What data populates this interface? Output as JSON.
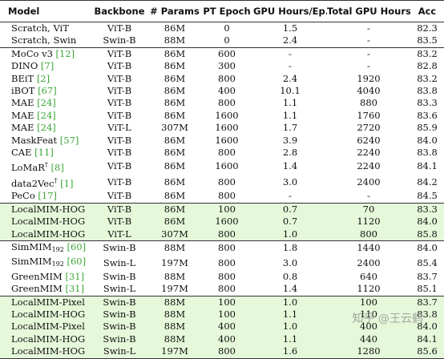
{
  "columns": [
    "Model",
    "Backbone",
    "# Params",
    "PT Epoch",
    "GPU Hours/Ep.",
    "Total GPU Hours",
    "Acc"
  ],
  "groups": [
    {
      "highlight": false,
      "rows": [
        {
          "model": "Scratch, ViT",
          "cite": "",
          "sub": "",
          "sup": "",
          "backbone": "ViT-B",
          "params": "86M",
          "epoch": "0",
          "gpu_ep": "1.5",
          "total": "-",
          "acc": "82.3"
        },
        {
          "model": "Scratch, Swin",
          "cite": "",
          "sub": "",
          "sup": "",
          "backbone": "Swin-B",
          "params": "88M",
          "epoch": "0",
          "gpu_ep": "2.4",
          "total": "-",
          "acc": "83.5"
        }
      ]
    },
    {
      "highlight": false,
      "rows": [
        {
          "model": "MoCo v3",
          "cite": "[12]",
          "sub": "",
          "sup": "",
          "backbone": "ViT-B",
          "params": "86M",
          "epoch": "600",
          "gpu_ep": "-",
          "total": "-",
          "acc": "83.2"
        },
        {
          "model": "DINO",
          "cite": "[7]",
          "sub": "",
          "sup": "",
          "backbone": "ViT-B",
          "params": "86M",
          "epoch": "300",
          "gpu_ep": "-",
          "total": "-",
          "acc": "82.8"
        },
        {
          "model": "BEiT",
          "cite": "[2]",
          "sub": "",
          "sup": "",
          "backbone": "ViT-B",
          "params": "86M",
          "epoch": "800",
          "gpu_ep": "2.4",
          "total": "1920",
          "acc": "83.2"
        },
        {
          "model": "iBOT",
          "cite": "[67]",
          "sub": "",
          "sup": "",
          "backbone": "ViT-B",
          "params": "86M",
          "epoch": "400",
          "gpu_ep": "10.1",
          "total": "4040",
          "acc": "83.8"
        },
        {
          "model": "MAE",
          "cite": "[24]",
          "sub": "",
          "sup": "",
          "backbone": "ViT-B",
          "params": "86M",
          "epoch": "800",
          "gpu_ep": "1.1",
          "total": "880",
          "acc": "83.3"
        },
        {
          "model": "MAE",
          "cite": "[24]",
          "sub": "",
          "sup": "",
          "backbone": "ViT-B",
          "params": "86M",
          "epoch": "1600",
          "gpu_ep": "1.1",
          "total": "1760",
          "acc": "83.6"
        },
        {
          "model": "MAE",
          "cite": "[24]",
          "sub": "",
          "sup": "",
          "backbone": "ViT-L",
          "params": "307M",
          "epoch": "1600",
          "gpu_ep": "1.7",
          "total": "2720",
          "acc": "85.9"
        },
        {
          "model": "MaskFeat",
          "cite": "[57]",
          "sub": "",
          "sup": "",
          "backbone": "ViT-B",
          "params": "86M",
          "epoch": "1600",
          "gpu_ep": "3.9",
          "total": "6240",
          "acc": "84.0"
        },
        {
          "model": "CAE",
          "cite": "[11]",
          "sub": "",
          "sup": "",
          "backbone": "ViT-B",
          "params": "86M",
          "epoch": "800",
          "gpu_ep": "2.8",
          "total": "2240",
          "acc": "83.8"
        },
        {
          "model": "LoMaR",
          "cite": "[8]",
          "sub": "",
          "sup": "†",
          "backbone": "ViT-B",
          "params": "86M",
          "epoch": "1600",
          "gpu_ep": "1.4",
          "total": "2240",
          "acc": "84.1"
        },
        {
          "model": "data2Vec",
          "cite": "[1]",
          "sub": "",
          "sup": "†",
          "backbone": "ViT-B",
          "params": "86M",
          "epoch": "800",
          "gpu_ep": "3.0",
          "total": "2400",
          "acc": "84.2"
        },
        {
          "model": "PeCo",
          "cite": "[17]",
          "sub": "",
          "sup": "",
          "backbone": "ViT-B",
          "params": "86M",
          "epoch": "800",
          "gpu_ep": "-",
          "total": "-",
          "acc": "84.5"
        }
      ]
    },
    {
      "highlight": true,
      "rows": [
        {
          "model": "LocalMIM-HOG",
          "cite": "",
          "sub": "",
          "sup": "",
          "backbone": "ViT-B",
          "params": "86M",
          "epoch": "100",
          "gpu_ep": "0.7",
          "total": "70",
          "acc": "83.3"
        },
        {
          "model": "LocalMIM-HOG",
          "cite": "",
          "sub": "",
          "sup": "",
          "backbone": "ViT-B",
          "params": "86M",
          "epoch": "1600",
          "gpu_ep": "0.7",
          "total": "1120",
          "acc": "84.0"
        },
        {
          "model": "LocalMIM-HOG",
          "cite": "",
          "sub": "",
          "sup": "",
          "backbone": "ViT-L",
          "params": "307M",
          "epoch": "800",
          "gpu_ep": "1.0",
          "total": "800",
          "acc": "85.8"
        }
      ]
    },
    {
      "highlight": false,
      "rows": [
        {
          "model": "SimMIM",
          "cite": "[60]",
          "sub": "192",
          "sup": "",
          "backbone": "Swin-B",
          "params": "88M",
          "epoch": "800",
          "gpu_ep": "1.8",
          "total": "1440",
          "acc": "84.0"
        },
        {
          "model": "SimMIM",
          "cite": "[60]",
          "sub": "192",
          "sup": "",
          "backbone": "Swin-L",
          "params": "197M",
          "epoch": "800",
          "gpu_ep": "3.0",
          "total": "2400",
          "acc": "85.4"
        },
        {
          "model": "GreenMIM",
          "cite": "[31]",
          "sub": "",
          "sup": "",
          "backbone": "Swin-B",
          "params": "88M",
          "epoch": "800",
          "gpu_ep": "0.8",
          "total": "640",
          "acc": "83.7"
        },
        {
          "model": "GreenMIM",
          "cite": "[31]",
          "sub": "",
          "sup": "",
          "backbone": "Swin-L",
          "params": "197M",
          "epoch": "800",
          "gpu_ep": "1.4",
          "total": "1120",
          "acc": "85.1"
        }
      ]
    },
    {
      "highlight": true,
      "rows": [
        {
          "model": "LocalMIM-Pixel",
          "cite": "",
          "sub": "",
          "sup": "",
          "backbone": "Swin-B",
          "params": "88M",
          "epoch": "100",
          "gpu_ep": "1.0",
          "total": "100",
          "acc": "83.7"
        },
        {
          "model": "LocalMIM-HOG",
          "cite": "",
          "sub": "",
          "sup": "",
          "backbone": "Swin-B",
          "params": "88M",
          "epoch": "100",
          "gpu_ep": "1.1",
          "total": "110",
          "acc": "83.8"
        },
        {
          "model": "LocalMIM-Pixel",
          "cite": "",
          "sub": "",
          "sup": "",
          "backbone": "Swin-B",
          "params": "88M",
          "epoch": "400",
          "gpu_ep": "1.0",
          "total": "400",
          "acc": "84.0"
        },
        {
          "model": "LocalMIM-HOG",
          "cite": "",
          "sub": "",
          "sup": "",
          "backbone": "Swin-B",
          "params": "88M",
          "epoch": "400",
          "gpu_ep": "1.1",
          "total": "440",
          "acc": "84.1"
        },
        {
          "model": "LocalMIM-HOG",
          "cite": "",
          "sub": "",
          "sup": "",
          "backbone": "Swin-L",
          "params": "197M",
          "epoch": "800",
          "gpu_ep": "1.6",
          "total": "1280",
          "acc": "85.6"
        }
      ]
    }
  ],
  "watermark": "知乎 @王云鹤"
}
